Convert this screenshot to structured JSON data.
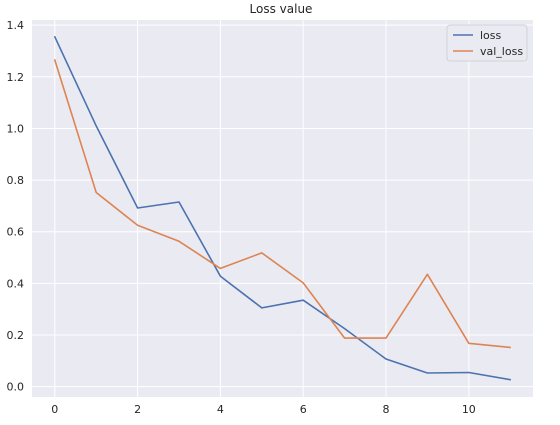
{
  "chart_data": {
    "type": "line",
    "title": "Loss value",
    "xlabel": "",
    "ylabel": "",
    "x": [
      0,
      1,
      2,
      3,
      4,
      5,
      6,
      7,
      8,
      9,
      10,
      11
    ],
    "series": [
      {
        "name": "loss",
        "color": "#4c72b0",
        "values": [
          1.355,
          1.01,
          0.692,
          0.715,
          0.428,
          0.305,
          0.335,
          0.225,
          0.107,
          0.053,
          0.055,
          0.027
        ]
      },
      {
        "name": "val_loss",
        "color": "#dd8452",
        "values": [
          1.265,
          0.752,
          0.625,
          0.563,
          0.458,
          0.518,
          0.402,
          0.188,
          0.188,
          0.435,
          0.168,
          0.152
        ]
      }
    ],
    "xlim": [
      -0.55,
      11.55
    ],
    "ylim": [
      -0.04,
      1.42
    ],
    "xticks": [
      0,
      2,
      4,
      6,
      8,
      10
    ],
    "xtick_labels": [
      "0",
      "2",
      "4",
      "6",
      "8",
      "10"
    ],
    "yticks": [
      0.0,
      0.2,
      0.4,
      0.6,
      0.8,
      1.0,
      1.2,
      1.4
    ],
    "ytick_labels": [
      "0.0",
      "0.2",
      "0.4",
      "0.6",
      "0.8",
      "1.0",
      "1.2",
      "1.4"
    ],
    "grid": true,
    "legend_position": "top-right",
    "background_color": "#eaeaf2",
    "grid_color": "#ffffff"
  }
}
